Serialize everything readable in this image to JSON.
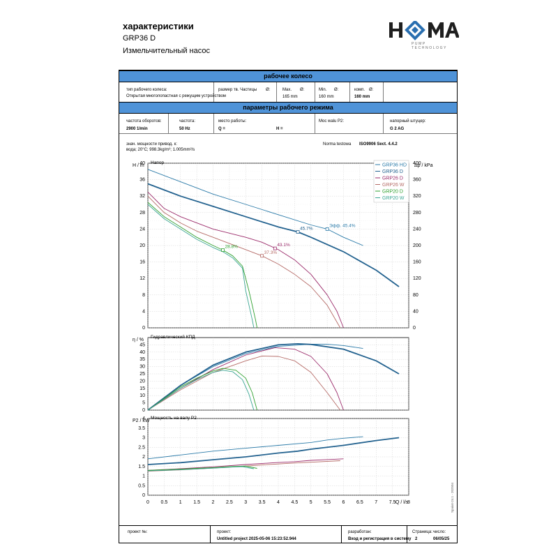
{
  "header": {
    "title": "характеристики",
    "model": "GRP36 D",
    "description": "Измельчительный насос",
    "logo_text": "HOMA",
    "logo_tagline": "PUMP TECHNOLOGY",
    "brand_color": "#2a6fb0"
  },
  "impeller_section": {
    "title": "рабочее колесо",
    "type_label": "тип рабочего колеса:",
    "type_value": "Открытая многолопастная с режущим устройством",
    "particle_label": "размер тв. Частицы",
    "particle_symbol": "Ø:",
    "max_label": "Max.",
    "max_symbol": "Ø:",
    "max_value": "165 mm",
    "min_label": "Min.",
    "min_symbol": "Ø:",
    "min_value": "160 mm",
    "comp_label": "комп.",
    "comp_symbol": "Ø:",
    "comp_value": "160 mm"
  },
  "operating_section": {
    "title": "параметры рабочего режима",
    "speed_label": "частота оборотов:",
    "speed_value": "2900 1/min",
    "freq_label": "частота:",
    "freq_value": "50 Hz",
    "place_label": "место работы:",
    "q_label": "Q =",
    "h_label": "H =",
    "power_label": "Moc walu P2:",
    "discharge_label": "напорный штуцер:",
    "discharge_value": "G 2 AG"
  },
  "notes": {
    "line1": "знач. мощности привод. к:",
    "line2": "вода; 20°C; 998.3kg/m³; 1.005mm²/s",
    "norm_label": "Norma testowa",
    "norm_value": "ISO9906 Sect. 4.4.2"
  },
  "chart_data": [
    {
      "type": "line",
      "title": "Напор",
      "ylabel": "H / m",
      "y2label": "Δp / kPa",
      "ylim": [
        0,
        40
      ],
      "y_ticks": [
        0,
        4,
        8,
        12,
        16,
        20,
        24,
        28,
        32,
        36,
        40
      ],
      "y2_ticks": [
        0,
        40,
        80,
        120,
        160,
        200,
        240,
        280,
        320,
        360,
        400
      ],
      "xlim": [
        0,
        8
      ],
      "grid": true,
      "legend_position": "top-right",
      "series": [
        {
          "name": "GRP36 HD",
          "color": "#2a7aa8",
          "x": [
            0,
            1,
            2,
            3,
            4,
            5,
            5.5,
            6,
            6.6
          ],
          "y": [
            38.5,
            35.5,
            32.5,
            30,
            27.5,
            25,
            24,
            22,
            20
          ]
        },
        {
          "name": "GRP36 D",
          "color": "#23628f",
          "x": [
            0,
            1,
            2,
            3,
            4,
            4.6,
            5,
            6,
            7,
            7.7
          ],
          "y": [
            35,
            32,
            29.5,
            27,
            24.5,
            23.3,
            22,
            18.5,
            14,
            10
          ]
        },
        {
          "name": "GRP26 D",
          "color": "#9b2a6a",
          "x": [
            0,
            0.5,
            1,
            1.5,
            2,
            2.5,
            3,
            3.5,
            4,
            4.5,
            5,
            5.5,
            5.8,
            6
          ],
          "y": [
            33,
            29,
            27,
            25.5,
            24,
            23,
            22,
            20.8,
            19,
            16.5,
            13,
            8,
            4,
            0
          ]
        },
        {
          "name": "GRP26 W",
          "color": "#b56a66",
          "x": [
            0,
            0.5,
            1,
            1.5,
            2,
            2.5,
            3,
            3.5,
            4,
            4.5,
            5,
            5.5,
            5.9
          ],
          "y": [
            32,
            28,
            25.5,
            23.5,
            22,
            20.5,
            19,
            17.5,
            15.5,
            13,
            10,
            5.5,
            0
          ]
        },
        {
          "name": "GRP20 D",
          "color": "#2ea02e",
          "x": [
            0,
            0.5,
            1,
            1.5,
            2,
            2.3,
            2.6,
            2.9,
            3.1,
            3.3,
            3.35
          ],
          "y": [
            30.5,
            27,
            24.5,
            22,
            20,
            18.9,
            17.5,
            15,
            9,
            2,
            0
          ]
        },
        {
          "name": "GRP20 W",
          "color": "#3aa592",
          "x": [
            0,
            0.5,
            1,
            1.5,
            2,
            2.3,
            2.6,
            2.9,
            3.0,
            3.2,
            3.25
          ],
          "y": [
            30,
            26.5,
            24,
            21.5,
            19.5,
            18.5,
            17,
            14.5,
            9,
            2,
            0
          ]
        }
      ],
      "annotations": [
        {
          "text": "45.7%",
          "x": 4.6,
          "y": 23.3,
          "color": "#23628f"
        },
        {
          "text": "Эфф. 45.4%",
          "x": 5.5,
          "y": 24,
          "color": "#2a7aa8"
        },
        {
          "text": "43.1%",
          "x": 3.9,
          "y": 19.3,
          "color": "#9b2a6a"
        },
        {
          "text": "37.3%",
          "x": 3.5,
          "y": 17.5,
          "color": "#b56a66"
        },
        {
          "text": "28.8%",
          "x": 2.3,
          "y": 18.9,
          "color": "#2ea02e"
        }
      ]
    },
    {
      "type": "line",
      "title": "Гидравлический КПД",
      "ylabel": "η / %",
      "ylim": [
        0,
        50
      ],
      "y_ticks": [
        0,
        5,
        10,
        15,
        20,
        25,
        30,
        35,
        40,
        45
      ],
      "xlim": [
        0,
        8
      ],
      "grid": true,
      "series": [
        {
          "name": "GRP36 HD",
          "color": "#2a7aa8",
          "x": [
            0,
            1,
            2,
            3,
            4,
            5,
            5.5,
            6,
            6.6
          ],
          "y": [
            0,
            17,
            30,
            39,
            44,
            45.5,
            45.4,
            44.5,
            42.5
          ]
        },
        {
          "name": "GRP36 D",
          "color": "#23628f",
          "x": [
            0,
            1,
            2,
            3,
            4,
            4.6,
            5,
            6,
            7,
            7.7
          ],
          "y": [
            0,
            17,
            31,
            40,
            45,
            45.7,
            45.3,
            42,
            34,
            25
          ]
        },
        {
          "name": "GRP26 D",
          "color": "#9b2a6a",
          "x": [
            0,
            1,
            2,
            3,
            3.9,
            4.5,
            5,
            5.5,
            5.8,
            6
          ],
          "y": [
            0,
            15,
            28,
            38,
            43.1,
            42,
            37,
            25,
            12,
            0
          ]
        },
        {
          "name": "GRP26 W",
          "color": "#b56a66",
          "x": [
            0,
            1,
            2,
            3,
            3.5,
            4,
            4.5,
            5,
            5.5,
            5.9
          ],
          "y": [
            0,
            14,
            26,
            34,
            37.3,
            37,
            34,
            26,
            12,
            0
          ]
        },
        {
          "name": "GRP20 D",
          "color": "#2ea02e",
          "x": [
            0,
            0.5,
            1,
            1.5,
            2,
            2.3,
            2.7,
            3.0,
            3.2,
            3.35
          ],
          "y": [
            0,
            8,
            16,
            22,
            27,
            28.8,
            27.5,
            22,
            12,
            0
          ]
        },
        {
          "name": "GRP20 W",
          "color": "#3aa592",
          "x": [
            0,
            0.5,
            1,
            1.5,
            2,
            2.3,
            2.6,
            2.9,
            3.1,
            3.25
          ],
          "y": [
            0,
            7.5,
            15,
            21,
            26,
            27.5,
            26.5,
            21,
            11,
            0
          ]
        }
      ]
    },
    {
      "type": "line",
      "title": "Мощность на валу P2",
      "ylabel": "P2 / kW",
      "ylim": [
        0,
        4
      ],
      "y_ticks": [
        0,
        0.5,
        1,
        1.5,
        2,
        2.5,
        3,
        3.5,
        4
      ],
      "xlabel": "Q / l/s",
      "xlim": [
        0,
        8
      ],
      "x_ticks": [
        0,
        0.5,
        1,
        1.5,
        2,
        2.5,
        3,
        3.5,
        4,
        4.5,
        5,
        5.5,
        6,
        6.5,
        7,
        7.5,
        8
      ],
      "grid": true,
      "series": [
        {
          "name": "GRP36 HD",
          "color": "#2a7aa8",
          "x": [
            0,
            1,
            2,
            3,
            4,
            5,
            5.5,
            6,
            6.6
          ],
          "y": [
            1.9,
            2.1,
            2.3,
            2.45,
            2.6,
            2.75,
            2.88,
            2.97,
            3.05
          ]
        },
        {
          "name": "GRP36 D",
          "color": "#23628f",
          "x": [
            0,
            1,
            2,
            3,
            4,
            4.6,
            5,
            6,
            7,
            7.7
          ],
          "y": [
            1.6,
            1.7,
            1.85,
            2.0,
            2.2,
            2.3,
            2.4,
            2.6,
            2.85,
            3.0
          ]
        },
        {
          "name": "GRP26 D",
          "color": "#9b2a6a",
          "x": [
            0,
            1,
            2,
            3,
            3.9,
            4.5,
            5,
            5.5,
            6
          ],
          "y": [
            1.3,
            1.38,
            1.48,
            1.6,
            1.7,
            1.75,
            1.82,
            1.86,
            1.9
          ]
        },
        {
          "name": "GRP26 W",
          "color": "#b56a66",
          "x": [
            0,
            1,
            2,
            3,
            3.5,
            4,
            4.5,
            5,
            5.9
          ],
          "y": [
            1.25,
            1.32,
            1.42,
            1.52,
            1.58,
            1.63,
            1.68,
            1.72,
            1.8
          ]
        },
        {
          "name": "GRP20 D",
          "color": "#2ea02e",
          "x": [
            0,
            0.5,
            1,
            1.5,
            2,
            2.3,
            2.6,
            3.0,
            3.35
          ],
          "y": [
            1.3,
            1.33,
            1.36,
            1.4,
            1.44,
            1.47,
            1.5,
            1.52,
            1.4
          ]
        },
        {
          "name": "GRP20 W",
          "color": "#3aa592",
          "x": [
            0,
            0.5,
            1,
            1.5,
            2,
            2.3,
            2.6,
            2.9,
            3.25
          ],
          "y": [
            1.27,
            1.3,
            1.33,
            1.37,
            1.41,
            1.44,
            1.47,
            1.49,
            1.38
          ]
        }
      ]
    }
  ],
  "footer": {
    "project_no_label": "проект №:",
    "project_label": "проект:",
    "project_value": "Untitled project 2025-05-06 15:23:52.944",
    "author_label": "разработан:",
    "author_value": "Вход и регистрация в систему",
    "page_label": "Страница:",
    "page_value": "2",
    "date_label": "число:",
    "date_value": "06/05/25"
  },
  "side_note": "Spaix6-24.1 - 202504"
}
